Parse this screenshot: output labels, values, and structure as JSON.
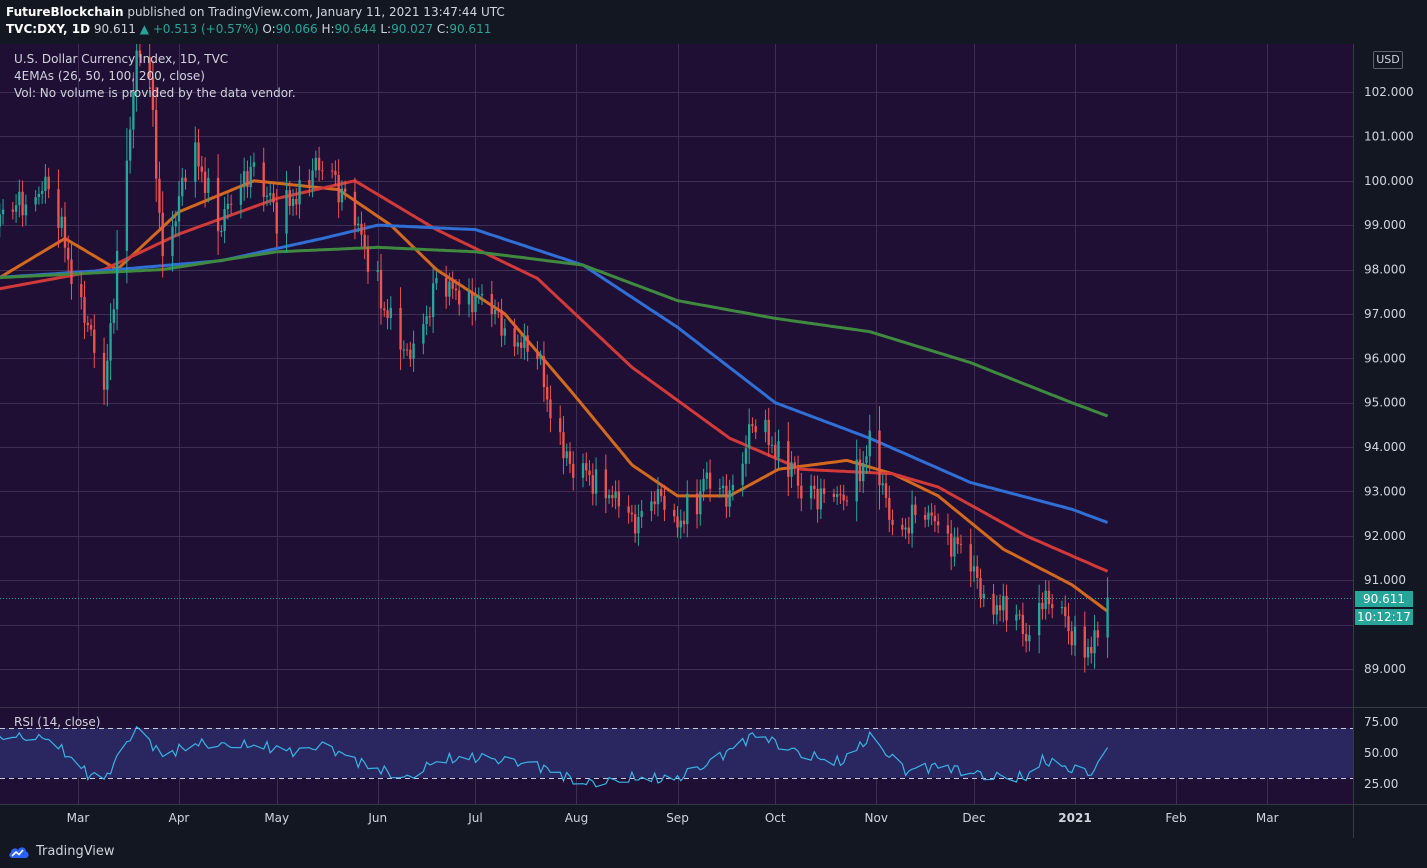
{
  "header": {
    "author": "FutureBlockchain",
    "published_text": "published on TradingView.com, January 11, 2021 13:47:44 UTC",
    "symbol": "TVC:DXY, 1D",
    "last": "90.611",
    "change": "▲ +0.513 (+0.57%)",
    "o_label": "O:",
    "o_val": "90.066",
    "h_label": "H:",
    "h_val": "90.644",
    "l_label": "L:",
    "l_val": "90.027",
    "c_label": "C:",
    "c_val": "90.611"
  },
  "legend": {
    "title": "U.S. Dollar Currency Index, 1D, TVC",
    "ema": "4EMAs (26, 50, 100, 200, close)",
    "vol": "Vol: No volume is provided by the data vendor.",
    "rsi": "RSI (14, close)"
  },
  "currency_badge": "USD",
  "price_tag": {
    "price": "90.611",
    "countdown": "10:12:17"
  },
  "footer": {
    "brand": "TradingView"
  },
  "colors": {
    "background": "#1f0f35",
    "up": "#26a69a",
    "down": "#ef5350",
    "ema26": "#d2691e",
    "ema50": "#d23a3a",
    "ema100": "#2f6fd6",
    "ema200": "#3f8a3f",
    "rsi": "#36b4e6"
  },
  "chart_data": {
    "type": "candlestick",
    "title": "U.S. Dollar Currency Index, 1D, TVC",
    "ylim": [
      88.2,
      103.0
    ],
    "y_ticks": [
      "102.000",
      "101.000",
      "100.000",
      "99.000",
      "98.000",
      "97.000",
      "96.000",
      "95.000",
      "94.000",
      "93.000",
      "92.000",
      "91.000",
      "89.000"
    ],
    "x_ticks": [
      "Mar",
      "Apr",
      "May",
      "Jun",
      "Jul",
      "Aug",
      "Sep",
      "Oct",
      "Nov",
      "Dec",
      "2021",
      "Feb",
      "Mar"
    ],
    "close_anchors": [
      {
        "date": "2020-02-01",
        "value": 98.8
      },
      {
        "date": "2020-02-12",
        "value": 99.4
      },
      {
        "date": "2020-02-20",
        "value": 99.9
      },
      {
        "date": "2020-02-27",
        "value": 98.3
      },
      {
        "date": "2020-03-05",
        "value": 96.5
      },
      {
        "date": "2020-03-09",
        "value": 95.0
      },
      {
        "date": "2020-03-13",
        "value": 98.4
      },
      {
        "date": "2020-03-19",
        "value": 102.8
      },
      {
        "date": "2020-03-23",
        "value": 102.3
      },
      {
        "date": "2020-03-27",
        "value": 98.4
      },
      {
        "date": "2020-04-01",
        "value": 99.6
      },
      {
        "date": "2020-04-06",
        "value": 100.6
      },
      {
        "date": "2020-04-14",
        "value": 99.0
      },
      {
        "date": "2020-04-24",
        "value": 100.4
      },
      {
        "date": "2020-05-01",
        "value": 99.1
      },
      {
        "date": "2020-05-08",
        "value": 99.8
      },
      {
        "date": "2020-05-15",
        "value": 100.4
      },
      {
        "date": "2020-05-22",
        "value": 99.7
      },
      {
        "date": "2020-05-29",
        "value": 98.3
      },
      {
        "date": "2020-06-05",
        "value": 96.8
      },
      {
        "date": "2020-06-10",
        "value": 96.0
      },
      {
        "date": "2020-06-19",
        "value": 97.6
      },
      {
        "date": "2020-06-30",
        "value": 97.4
      },
      {
        "date": "2020-07-10",
        "value": 96.7
      },
      {
        "date": "2020-07-20",
        "value": 95.9
      },
      {
        "date": "2020-07-31",
        "value": 93.3
      },
      {
        "date": "2020-08-07",
        "value": 93.4
      },
      {
        "date": "2020-08-18",
        "value": 92.3
      },
      {
        "date": "2020-08-25",
        "value": 93.0
      },
      {
        "date": "2020-08-31",
        "value": 92.2
      },
      {
        "date": "2020-09-10",
        "value": 93.2
      },
      {
        "date": "2020-09-17",
        "value": 92.9
      },
      {
        "date": "2020-09-25",
        "value": 94.6
      },
      {
        "date": "2020-10-09",
        "value": 93.1
      },
      {
        "date": "2020-10-21",
        "value": 92.8
      },
      {
        "date": "2020-10-30",
        "value": 94.0
      },
      {
        "date": "2020-11-06",
        "value": 92.3
      },
      {
        "date": "2020-11-20",
        "value": 92.4
      },
      {
        "date": "2020-12-04",
        "value": 90.7
      },
      {
        "date": "2020-12-17",
        "value": 89.8
      },
      {
        "date": "2020-12-22",
        "value": 90.6
      },
      {
        "date": "2020-12-31",
        "value": 89.9
      },
      {
        "date": "2021-01-06",
        "value": 89.4
      },
      {
        "date": "2021-01-11",
        "value": 90.61
      }
    ],
    "ema_series": [
      {
        "name": "EMA 26",
        "points": [
          [
            "2020-02-01",
            97.6
          ],
          [
            "2020-02-26",
            98.7
          ],
          [
            "2020-03-13",
            98.0
          ],
          [
            "2020-04-01",
            99.3
          ],
          [
            "2020-04-24",
            100.0
          ],
          [
            "2020-05-20",
            99.8
          ],
          [
            "2020-06-05",
            99.0
          ],
          [
            "2020-06-19",
            98.0
          ],
          [
            "2020-07-10",
            97.0
          ],
          [
            "2020-07-31",
            95.2
          ],
          [
            "2020-08-18",
            93.6
          ],
          [
            "2020-09-01",
            92.9
          ],
          [
            "2020-09-17",
            92.9
          ],
          [
            "2020-10-02",
            93.5
          ],
          [
            "2020-10-23",
            93.7
          ],
          [
            "2020-11-06",
            93.4
          ],
          [
            "2020-11-20",
            92.9
          ],
          [
            "2020-12-10",
            91.7
          ],
          [
            "2020-12-31",
            90.9
          ],
          [
            "2021-01-11",
            90.3
          ]
        ]
      },
      {
        "name": "EMA 50",
        "points": [
          [
            "2020-02-01",
            97.5
          ],
          [
            "2020-03-09",
            98.0
          ],
          [
            "2020-04-01",
            98.8
          ],
          [
            "2020-05-01",
            99.6
          ],
          [
            "2020-05-25",
            100.0
          ],
          [
            "2020-06-19",
            98.9
          ],
          [
            "2020-07-20",
            97.8
          ],
          [
            "2020-08-18",
            95.8
          ],
          [
            "2020-09-17",
            94.2
          ],
          [
            "2020-10-09",
            93.5
          ],
          [
            "2020-11-06",
            93.4
          ],
          [
            "2020-11-20",
            93.1
          ],
          [
            "2020-12-17",
            92.0
          ],
          [
            "2021-01-11",
            91.2
          ]
        ]
      },
      {
        "name": "EMA 100",
        "points": [
          [
            "2020-02-01",
            97.8
          ],
          [
            "2020-03-13",
            98.0
          ],
          [
            "2020-04-14",
            98.2
          ],
          [
            "2020-05-15",
            98.7
          ],
          [
            "2020-06-01",
            99.0
          ],
          [
            "2020-07-01",
            98.9
          ],
          [
            "2020-08-03",
            98.1
          ],
          [
            "2020-09-01",
            96.7
          ],
          [
            "2020-10-01",
            95.0
          ],
          [
            "2020-10-30",
            94.2
          ],
          [
            "2020-11-30",
            93.2
          ],
          [
            "2020-12-31",
            92.6
          ],
          [
            "2021-01-11",
            92.3
          ]
        ]
      },
      {
        "name": "EMA 200",
        "points": [
          [
            "2020-02-01",
            97.8
          ],
          [
            "2020-03-27",
            98.0
          ],
          [
            "2020-05-01",
            98.4
          ],
          [
            "2020-06-01",
            98.5
          ],
          [
            "2020-07-01",
            98.4
          ],
          [
            "2020-08-03",
            98.1
          ],
          [
            "2020-09-01",
            97.3
          ],
          [
            "2020-10-01",
            96.9
          ],
          [
            "2020-10-30",
            96.6
          ],
          [
            "2020-11-30",
            95.9
          ],
          [
            "2020-12-31",
            95.0
          ],
          [
            "2021-01-11",
            94.7
          ]
        ]
      }
    ],
    "rsi": {
      "label": "RSI (14, close)",
      "y_ticks": [
        "75.00",
        "50.00",
        "25.00"
      ],
      "bands": [
        30,
        70
      ],
      "points": [
        [
          "2020-02-01",
          65
        ],
        [
          "2020-02-21",
          62
        ],
        [
          "2020-03-04",
          33
        ],
        [
          "2020-03-09",
          28
        ],
        [
          "2020-03-19",
          70
        ],
        [
          "2020-03-27",
          48
        ],
        [
          "2020-04-06",
          58
        ],
        [
          "2020-04-24",
          56
        ],
        [
          "2020-05-08",
          50
        ],
        [
          "2020-05-15",
          56
        ],
        [
          "2020-05-29",
          40
        ],
        [
          "2020-06-10",
          30
        ],
        [
          "2020-06-19",
          44
        ],
        [
          "2020-07-01",
          46
        ],
        [
          "2020-07-20",
          40
        ],
        [
          "2020-08-03",
          26
        ],
        [
          "2020-08-18",
          30
        ],
        [
          "2020-08-31",
          28
        ],
        [
          "2020-09-10",
          40
        ],
        [
          "2020-09-25",
          66
        ],
        [
          "2020-10-09",
          50
        ],
        [
          "2020-10-21",
          42
        ],
        [
          "2020-10-30",
          62
        ],
        [
          "2020-11-10",
          35
        ],
        [
          "2020-11-20",
          40
        ],
        [
          "2020-12-04",
          33
        ],
        [
          "2020-12-17",
          30
        ],
        [
          "2020-12-22",
          44
        ],
        [
          "2020-12-31",
          36
        ],
        [
          "2021-01-06",
          33
        ],
        [
          "2021-01-11",
          50
        ]
      ]
    }
  }
}
